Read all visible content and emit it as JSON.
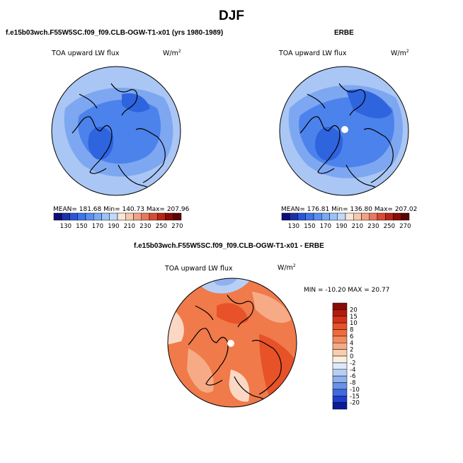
{
  "figure": {
    "title": "DJF",
    "panel_model_title": "f.e15b03wch.F55W5SC.f09_f09.CLB-OGW-T1-x01 (yrs 1980-1989)",
    "panel_obs_title": "ERBE",
    "panel_diff_title": "f.e15b03wch.F55W5SC.f09_f09.CLB-OGW-T1-x01 - ERBE"
  },
  "panels": [
    {
      "id": "model",
      "variable_label": "TOA upward LW flux",
      "units_label": "W/m",
      "units_exp": "2",
      "stats": {
        "mean": "181.68",
        "min": "140.73",
        "max": "207.96"
      },
      "stats_text": "MEAN= 181.68   Min= 140.73   Max= 207.96"
    },
    {
      "id": "obs",
      "variable_label": "TOA upward LW flux",
      "units_label": "W/m",
      "units_exp": "2",
      "stats": {
        "mean": "176.81",
        "min": "136.80",
        "max": "207.02"
      },
      "stats_text": "MEAN= 176.81   Min= 136.80   Max= 207.02"
    },
    {
      "id": "diff",
      "variable_label": "TOA upward LW flux",
      "units_label": "W/m",
      "units_exp": "2",
      "stats": {
        "min": "-10.20",
        "max": "20.77"
      },
      "stats_text": "MIN = -10.20 MAX =  20.77"
    }
  ],
  "abs_colorbar": {
    "tick_labels": [
      "130",
      "150",
      "170",
      "190",
      "210",
      "230",
      "250",
      "270"
    ],
    "colors": [
      "#0c0c7a",
      "#1a32a8",
      "#2a55d8",
      "#3f75ea",
      "#5a8ff2",
      "#7aa9f5",
      "#9cc2f8",
      "#c2daf9",
      "#f8e6d8",
      "#f6c9ae",
      "#f0a383",
      "#e7785c",
      "#d84b34",
      "#b82515",
      "#8a0a05",
      "#5c0202"
    ]
  },
  "diff_colorbar": {
    "tick_labels": [
      "20",
      "15",
      "10",
      "8",
      "6",
      "4",
      "2",
      "0",
      "-2",
      "-4",
      "-6",
      "-8",
      "-10",
      "-15",
      "-20"
    ],
    "colors": [
      "#8a0a05",
      "#b31a0e",
      "#d4301a",
      "#e85228",
      "#f06b3c",
      "#f48a5c",
      "#f6ab86",
      "#f8cdb0",
      "#fbeedd",
      "#dde9fb",
      "#b7cff5",
      "#8fb1ef",
      "#6a92e8",
      "#3f6ae0",
      "#1d3fcc",
      "#0a1b99"
    ]
  },
  "map_colors": {
    "abs_dark": "#2f64df",
    "abs_mid": "#4c82eb",
    "abs_light": "#7ea7f1",
    "abs_pale": "#a9c6f5",
    "abs_warm": "#fbe6d6",
    "diff_strong": "#e85228",
    "diff_mid": "#f07a4a",
    "diff_light": "#f6ab86",
    "diff_pale": "#fbd8c3",
    "diff_blue": "#b7cff5",
    "diff_blue_mid": "#8fb1ef",
    "coast": "#000000"
  }
}
